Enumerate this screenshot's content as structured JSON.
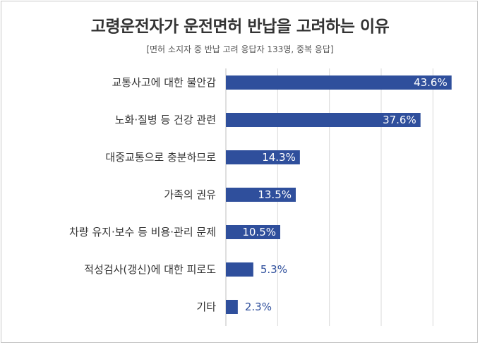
{
  "chart_data": {
    "type": "bar",
    "orientation": "horizontal",
    "title": "고령운전자가 운전면허 반납을 고려하는 이유",
    "subtitle": "[면허 소지자 중 반납 고려 응답자 133명, 중복 응답]",
    "categories": [
      "교통사고에 대한 불안감",
      "노화·질병 등 건강 관련",
      "대중교통으로 충분하므로",
      "가족의 권유",
      "차량 유지·보수 등 비용·관리 문제",
      "적성검사(갱신)에 대한 피로도",
      "기타"
    ],
    "values": [
      43.6,
      37.6,
      14.3,
      13.5,
      10.5,
      5.3,
      2.3
    ],
    "value_labels": [
      "43.6%",
      "37.6%",
      "14.3%",
      "13.5%",
      "10.5%",
      "5.3%",
      "2.3%"
    ],
    "xlim": [
      0,
      45
    ],
    "grid": true,
    "bar_color": "#2f4f9c",
    "label_inside_color": "#ffffff",
    "label_outside_color": "#2f4f9c"
  }
}
